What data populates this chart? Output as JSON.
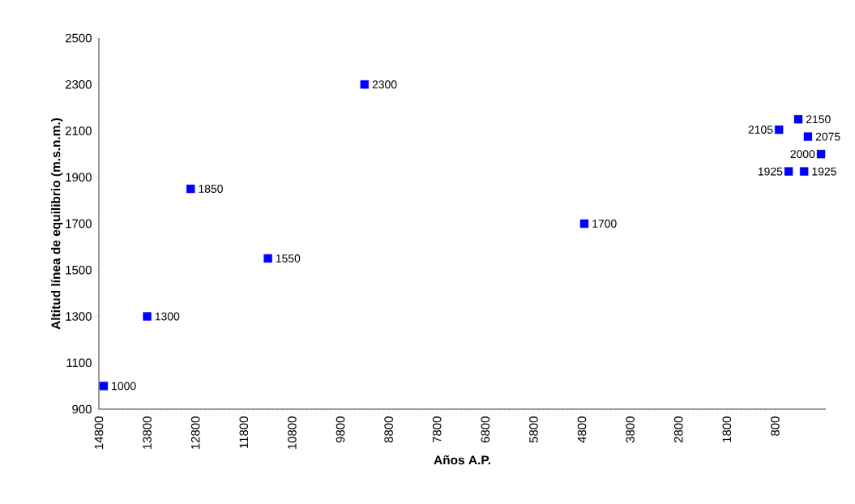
{
  "chart_data": {
    "type": "scatter",
    "xlabel": "Años A.P.",
    "ylabel": "Altitud línea de equilibrio (m.s.n.m.)",
    "x": [
      14700,
      13800,
      12900,
      11300,
      9300,
      4750,
      720,
      320,
      120,
      -150,
      520,
      200
    ],
    "series": [
      {
        "color": "#0000ff",
        "values": [
          1000,
          1300,
          1850,
          1550,
          2300,
          1700,
          2105,
          2150,
          2075,
          2000,
          1925,
          1925
        ]
      }
    ],
    "xlim": [
      14800,
      -250
    ],
    "ylim": [
      900,
      2500
    ],
    "xticks": [
      14800,
      13800,
      12800,
      11800,
      10800,
      9800,
      8800,
      7800,
      6800,
      5800,
      4800,
      3800,
      2800,
      1800,
      800
    ],
    "yticks": [
      900,
      1100,
      1300,
      1500,
      1700,
      1900,
      2100,
      2300,
      2500
    ],
    "marker": "square",
    "data_labels": true,
    "grid": false
  }
}
